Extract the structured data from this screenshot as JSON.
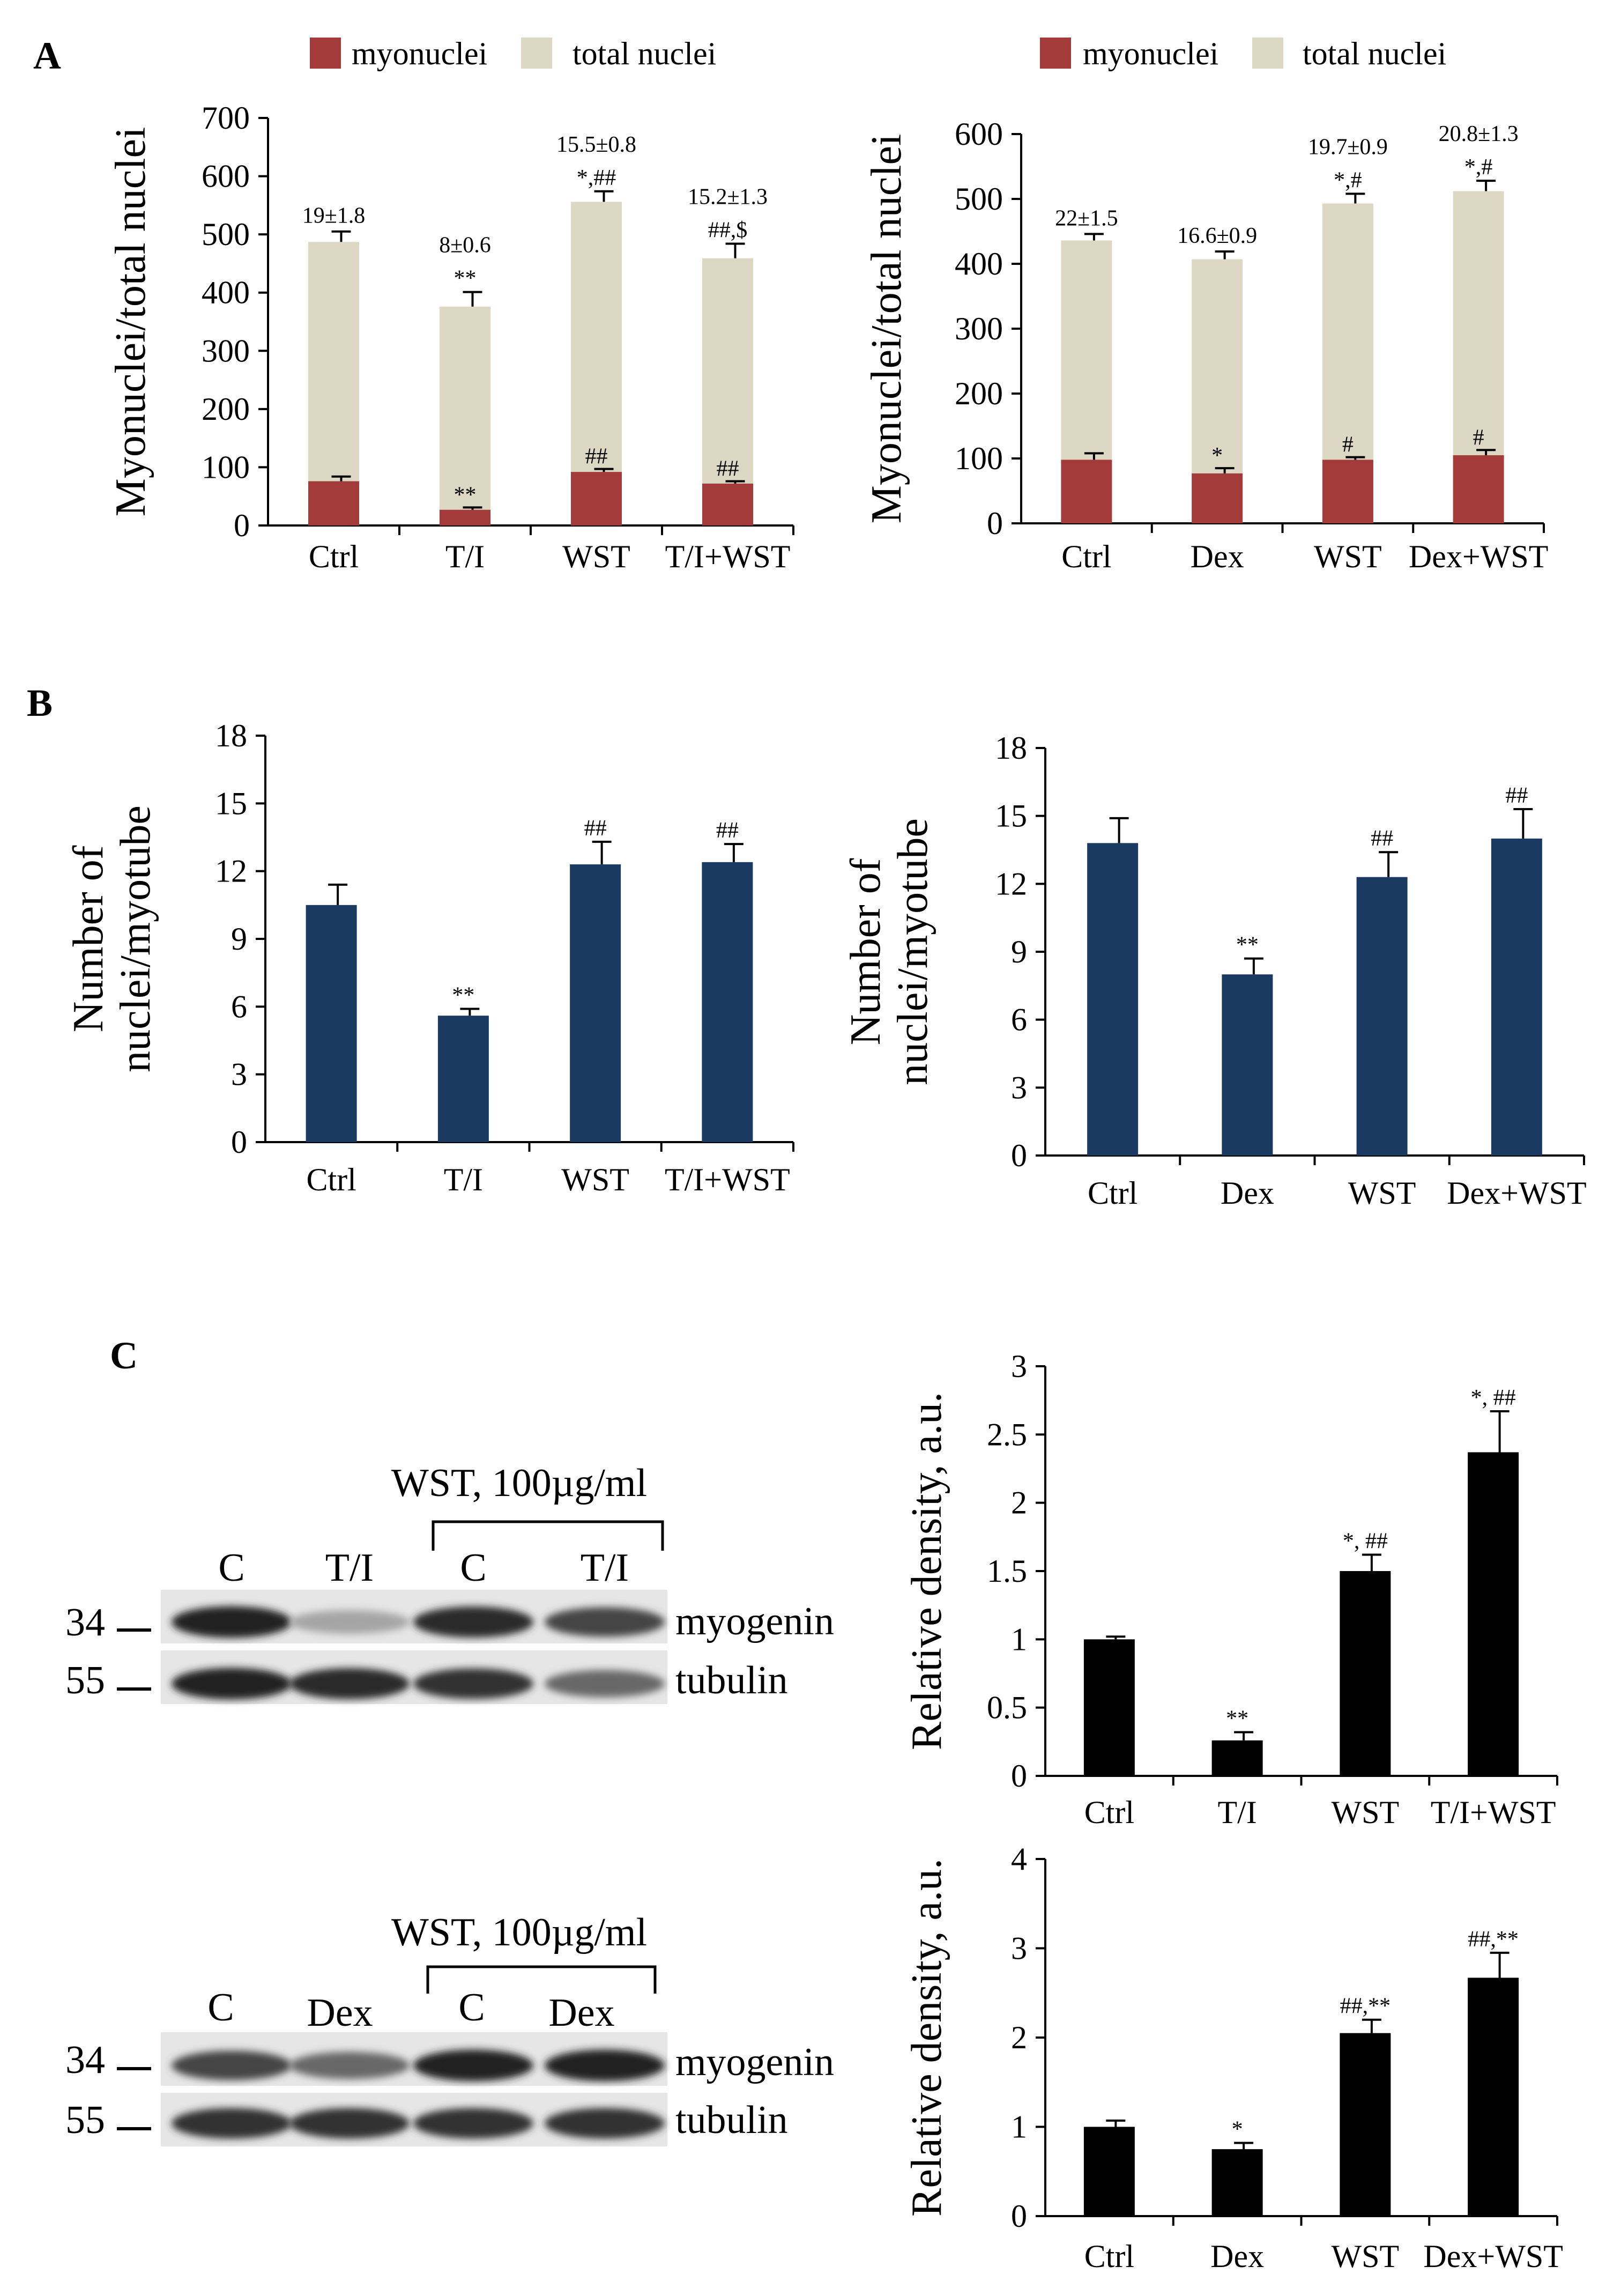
{
  "colors": {
    "myonuclei": "#a33b3b",
    "total_nuclei": "#ddd8c4",
    "panel_b_bars": "#1a3a62",
    "panel_c_bars": "#000000"
  },
  "panels": {
    "A": "A",
    "B": "B",
    "C": "C"
  },
  "chart_data": [
    {
      "id": "A1",
      "type": "bar",
      "stacked": true,
      "categories": [
        "Ctrl",
        "T/I",
        "WST",
        "T/I+WST"
      ],
      "series": [
        {
          "name": "myonuclei",
          "values": [
            76,
            27,
            92,
            72
          ],
          "errors": [
            8,
            4,
            5,
            4
          ],
          "annotations": [
            "",
            "**",
            "##",
            "##"
          ]
        },
        {
          "name": "total nuclei",
          "totals": [
            487,
            376,
            556,
            459
          ],
          "errors": [
            18,
            25,
            18,
            25
          ],
          "annotations": [
            "",
            "**",
            "*,##",
            "##,$"
          ]
        }
      ],
      "percent_labels": [
        "19±1.8",
        "8±0.6",
        "15.5±0.8",
        "15.2±1.3"
      ],
      "legend": [
        "myonuclei",
        "total nuclei"
      ],
      "ylabel": "Myonuclei/total nuclei",
      "ylim": [
        0,
        700
      ],
      "yticks": [
        "0",
        "100",
        "200",
        "300",
        "400",
        "500",
        "600",
        "700"
      ]
    },
    {
      "id": "A2",
      "type": "bar",
      "stacked": true,
      "categories": [
        "Ctrl",
        "Dex",
        "WST",
        "Dex+WST"
      ],
      "series": [
        {
          "name": "myonuclei",
          "values": [
            98,
            77,
            98,
            105
          ],
          "errors": [
            10,
            8,
            4,
            8
          ],
          "annotations": [
            "",
            "*",
            "#",
            "#"
          ]
        },
        {
          "name": "total nuclei",
          "totals": [
            436,
            407,
            493,
            512
          ],
          "errors": [
            10,
            12,
            15,
            16
          ],
          "annotations": [
            "",
            "",
            "*,#",
            "*,#"
          ]
        }
      ],
      "percent_labels": [
        "22±1.5",
        "16.6±0.9",
        "19.7±0.9",
        "20.8±1.3"
      ],
      "legend": [
        "myonuclei",
        "total nuclei"
      ],
      "ylabel": "Myonuclei/total nuclei",
      "ylim": [
        0,
        600
      ],
      "yticks": [
        "0",
        "100",
        "200",
        "300",
        "400",
        "500",
        "600"
      ]
    },
    {
      "id": "B1",
      "type": "bar",
      "categories": [
        "Ctrl",
        "T/I",
        "WST",
        "T/I+WST"
      ],
      "values": [
        10.5,
        5.6,
        12.3,
        12.4
      ],
      "errors": [
        0.9,
        0.3,
        1.0,
        0.8
      ],
      "annotations": [
        "",
        "**",
        "##",
        "##"
      ],
      "ylabel": [
        "Number of",
        "nuclei/myotube"
      ],
      "ylim": [
        0,
        18
      ],
      "yticks": [
        "0",
        "3",
        "6",
        "9",
        "12",
        "15",
        "18"
      ]
    },
    {
      "id": "B2",
      "type": "bar",
      "categories": [
        "Ctrl",
        "Dex",
        "WST",
        "Dex+WST"
      ],
      "values": [
        13.8,
        8.0,
        12.3,
        14.0
      ],
      "errors": [
        1.1,
        0.7,
        1.1,
        1.3
      ],
      "annotations": [
        "",
        "**",
        "##",
        "##"
      ],
      "ylabel": [
        "Number of",
        "nuclei/myotube"
      ],
      "ylim": [
        0,
        18
      ],
      "yticks": [
        "0",
        "3",
        "6",
        "9",
        "12",
        "15",
        "18"
      ]
    },
    {
      "id": "C1",
      "type": "bar",
      "categories": [
        "Ctrl",
        "T/I",
        "WST",
        "T/I+WST"
      ],
      "values": [
        1.0,
        0.26,
        1.5,
        2.37
      ],
      "errors": [
        0.02,
        0.06,
        0.12,
        0.3
      ],
      "annotations": [
        "",
        "**",
        "*, ##",
        "*, ##"
      ],
      "ylabel": "Relative density, a.u.",
      "ylim": [
        0,
        3
      ],
      "yticks": [
        "0",
        "0.5",
        "1",
        "1.5",
        "2",
        "2.5",
        "3"
      ]
    },
    {
      "id": "C2",
      "type": "bar",
      "categories": [
        "Ctrl",
        "Dex",
        "WST",
        "Dex+WST"
      ],
      "values": [
        1.0,
        0.75,
        2.05,
        2.67
      ],
      "errors": [
        0.07,
        0.07,
        0.15,
        0.28
      ],
      "annotations": [
        "",
        "*",
        "##,**",
        "##,**"
      ],
      "ylabel": "Relative density, a.u.",
      "ylim": [
        0,
        4
      ],
      "yticks": [
        "0",
        "1",
        "2",
        "3",
        "4"
      ]
    }
  ],
  "blots": [
    {
      "id": "blot1",
      "treatment": "WST, 100µg/ml",
      "lanes": [
        "C",
        "T/I",
        "C",
        "T/I"
      ],
      "markers": [
        "34",
        "55"
      ],
      "bands": [
        "myogenin",
        "tubulin"
      ],
      "intensity": {
        "myogenin": [
          0.95,
          0.2,
          0.9,
          0.75
        ],
        "tubulin": [
          0.95,
          0.9,
          0.85,
          0.55
        ]
      }
    },
    {
      "id": "blot2",
      "treatment": "WST, 100µg/ml",
      "lanes": [
        "C",
        "Dex",
        "C",
        "Dex"
      ],
      "markers": [
        "34",
        "55"
      ],
      "bands": [
        "myogenin",
        "tubulin"
      ],
      "intensity": {
        "myogenin": [
          0.75,
          0.55,
          0.95,
          0.95
        ],
        "tubulin": [
          0.85,
          0.85,
          0.85,
          0.85
        ]
      }
    }
  ]
}
